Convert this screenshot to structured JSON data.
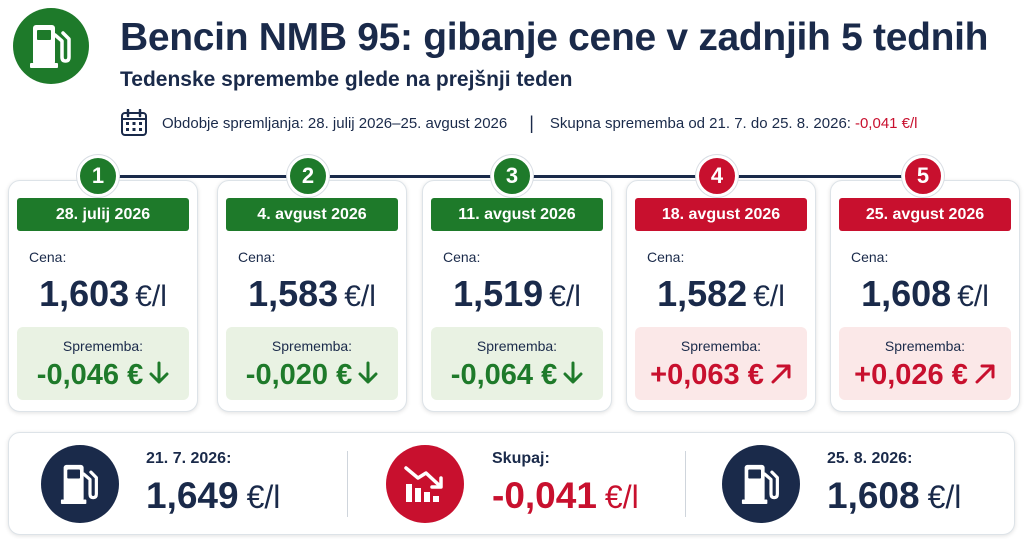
{
  "header": {
    "title": "Bencin NMB 95: gibanje cene v zadnjih 5 tednih",
    "subtitle": "Tedenske spremembe glede na prejšnji teden",
    "period": "Obdobje spremljanja: 28. julij 2026–25. avgust 2026",
    "separator": "|",
    "total_label": "Skupna sprememba od 21. 7. do 25. 8. 2026:",
    "total_value": "-0,041 €/l"
  },
  "labels": {
    "price": "Cena:",
    "change": "Sprememba:",
    "unit": "€/l"
  },
  "weeks": [
    {
      "num": "1",
      "date": "28. julij 2026",
      "price": "1,603",
      "change": "-0,046 €",
      "trend": "down"
    },
    {
      "num": "2",
      "date": "4. avgust 2026",
      "price": "1,583",
      "change": "-0,020 €",
      "trend": "down"
    },
    {
      "num": "3",
      "date": "11. avgust 2026",
      "price": "1,519",
      "change": "-0,064 €",
      "trend": "down"
    },
    {
      "num": "4",
      "date": "18. avgust 2026",
      "price": "1,582",
      "change": "+0,063 €",
      "trend": "up"
    },
    {
      "num": "5",
      "date": "25. avgust 2026",
      "price": "1,608",
      "change": "+0,026 €",
      "trend": "up"
    }
  ],
  "summary": {
    "start": {
      "label": "21. 7. 2026:",
      "value": "1,649",
      "unit": "€/l"
    },
    "total": {
      "label": "Skupaj:",
      "value": "-0,041",
      "unit": "€/l"
    },
    "end": {
      "label": "25. 8. 2026:",
      "value": "1,608",
      "unit": "€/l"
    }
  },
  "colors": {
    "green": "#1e7a2a",
    "red": "#c8102e",
    "navy": "#1a2a4a"
  },
  "icons": [
    "fuel-pump-icon",
    "calendar-icon",
    "arrow-down-icon",
    "arrow-up-right-icon",
    "falling-chart-icon"
  ]
}
